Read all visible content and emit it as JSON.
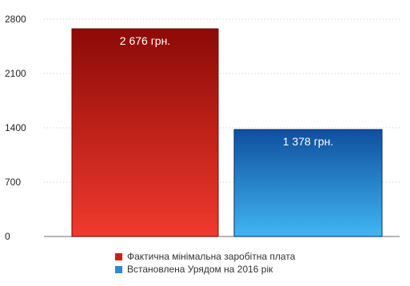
{
  "chart_data": {
    "type": "bar",
    "categories": [
      "Фактична мінімальна заробітна плата",
      "Встановлена Урядом на 2016 рік"
    ],
    "values": [
      2676,
      1378
    ],
    "data_labels": [
      "2 676 грн.",
      "1 378 грн."
    ],
    "ylim": [
      0,
      2800
    ],
    "yticks": [
      0,
      700,
      1400,
      2100,
      2800
    ],
    "ytick_labels": [
      "0",
      "700",
      "1400",
      "2100",
      "2800"
    ],
    "grid": true,
    "legend_position": "bottom",
    "series": [
      {
        "name": "Фактична мінімальна заробітна плата",
        "color": "#c8201a"
      },
      {
        "name": "Встановлена Урядом на 2016 рік",
        "color": "#2a86e0"
      }
    ],
    "colors": {
      "bar1_dark": "#8c0a06",
      "bar1_light": "#f03a2e",
      "bar2_dark": "#0f4f9e",
      "bar2_light": "#40b6f2"
    }
  }
}
